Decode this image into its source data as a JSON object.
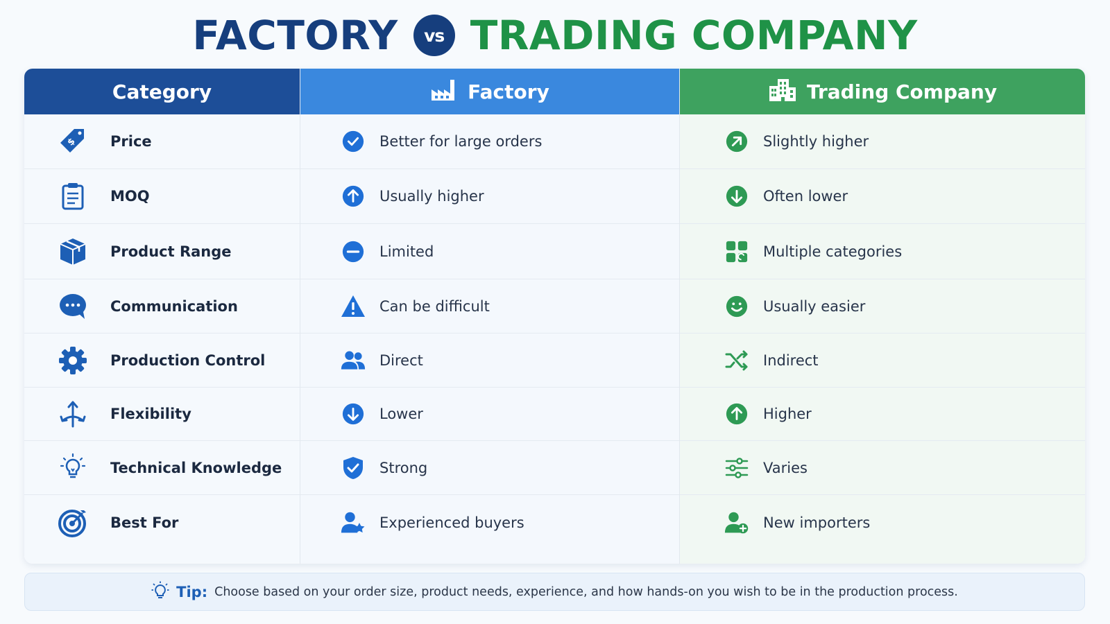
{
  "title": {
    "left": "FACTORY",
    "vs": "vs",
    "right": "TRADING COMPANY"
  },
  "headers": {
    "category": "Category",
    "factory": "Factory",
    "trading": "Trading Company"
  },
  "rows": [
    {
      "category": "Price",
      "factory": "Better for large orders",
      "trading": "Slightly higher",
      "icons": [
        "price-tag-icon",
        "check-circle-icon",
        "arrow-up-right-circle-icon"
      ]
    },
    {
      "category": "MOQ",
      "factory": "Usually higher",
      "trading": "Often lower",
      "icons": [
        "clipboard-icon",
        "arrow-up-circle-icon",
        "arrow-down-circle-icon"
      ]
    },
    {
      "category": "Product Range",
      "factory": "Limited",
      "trading": "Multiple categories",
      "icons": [
        "box-icon",
        "minus-circle-icon",
        "grid-categories-icon"
      ]
    },
    {
      "category": "Communication",
      "factory": "Can be difficult",
      "trading": "Usually easier",
      "icons": [
        "chat-bubble-icon",
        "warning-icon",
        "smiley-icon"
      ]
    },
    {
      "category": "Production Control",
      "factory": "Direct",
      "trading": "Indirect",
      "icons": [
        "gear-icon",
        "people-icon",
        "shuffle-icon"
      ]
    },
    {
      "category": "Flexibility",
      "factory": "Lower",
      "trading": "Higher",
      "icons": [
        "split-arrows-icon",
        "arrow-down-circle-icon",
        "arrow-up-circle-icon"
      ]
    },
    {
      "category": "Technical Knowledge",
      "factory": "Strong",
      "trading": "Varies",
      "icons": [
        "lightbulb-icon",
        "shield-check-icon",
        "sliders-icon"
      ]
    },
    {
      "category": "Best For",
      "factory": "Experienced buyers",
      "trading": "New importers",
      "icons": [
        "target-icon",
        "user-star-icon",
        "user-plus-icon"
      ]
    }
  ],
  "tip": {
    "label": "Tip:",
    "text": "Choose based on your order size, product needs, experience, and how hands-on you wish to be in the production process."
  },
  "colors": {
    "navy": "#163e7d",
    "blue": "#3a88de",
    "green": "#3ea25f",
    "category_header": "#1d4e98",
    "factory_icon": "#1f6fd6",
    "trading_icon": "#2e9a54"
  }
}
